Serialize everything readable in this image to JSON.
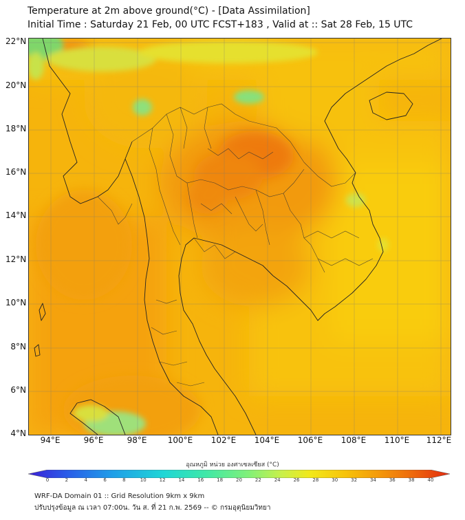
{
  "title": {
    "line1": "Temperature at 2m above ground(°C) - [Data Assimilation]",
    "line2": "Initial Time : Saturday 21 Feb, 00 UTC FCST+183 , Valid at :: Sat 28 Feb, 15 UTC"
  },
  "map": {
    "lat_labels": [
      "22°N",
      "20°N",
      "18°N",
      "16°N",
      "14°N",
      "12°N",
      "10°N",
      "8°N",
      "6°N",
      "4°N"
    ],
    "lon_labels": [
      "94°E",
      "96°E",
      "98°E",
      "100°E",
      "102°E",
      "104°E",
      "106°E",
      "108°E",
      "110°E",
      "112°E"
    ],
    "lat_range": [
      4,
      22.2
    ],
    "lon_range": [
      93,
      112.5
    ]
  },
  "colorbar": {
    "title": "อุณหภูมิ หน่วย องศาเซลเซียส (°C)",
    "ticks": [
      "0",
      "2",
      "4",
      "6",
      "8",
      "10",
      "12",
      "14",
      "16",
      "18",
      "20",
      "22",
      "24",
      "26",
      "28",
      "30",
      "32",
      "34",
      "36",
      "38",
      "40"
    ],
    "range": [
      0,
      40
    ],
    "colors": [
      "#3b1fd6",
      "#2a5be8",
      "#1f9ee8",
      "#1fd6d6",
      "#3ee8a8",
      "#7ff07a",
      "#c8f04a",
      "#f2e81a",
      "#f7c40a",
      "#f49a0a",
      "#ee6a0c",
      "#e32a10"
    ]
  },
  "footer": {
    "line1": "WRF-DA Domain 01 :: Grid Resolution 9km x 9km",
    "line2": "ปรับปรุงข้อมูล ณ เวลา 07:00น. วัน ส. ที่ 21 ก.พ. 2569 -- © กรมอุตุนิยมวิทยา"
  }
}
